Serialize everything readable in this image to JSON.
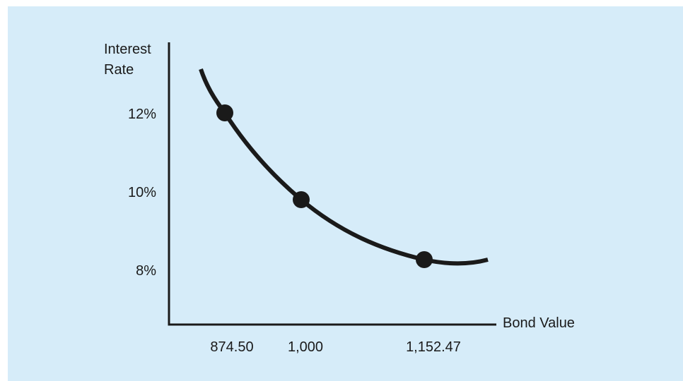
{
  "chart_data": {
    "type": "line",
    "title": "",
    "xlabel": "Bond Value",
    "ylabel_lines": [
      "Interest",
      "Rate"
    ],
    "x_tick_labels": [
      "874.50",
      "1,000",
      "1,152.47"
    ],
    "y_tick_labels": [
      "12%",
      "10%",
      "8%"
    ],
    "points": [
      {
        "x": 874.5,
        "y": 12,
        "x_label": "874.50",
        "y_label": "12%"
      },
      {
        "x": 1000,
        "y": 10,
        "x_label": "1,000",
        "y_label": "10%"
      },
      {
        "x": 1152.47,
        "y": 8,
        "x_label": "1,152.47",
        "y_label": "8%"
      }
    ],
    "grid": false,
    "legend": "none"
  },
  "colors": {
    "background": "#d6ecf9",
    "page": "#ffffff",
    "axis": "#1a1a1a",
    "curve": "#1a1a1a",
    "marker": "#1a1a1a",
    "text": "#1a1a1a"
  }
}
